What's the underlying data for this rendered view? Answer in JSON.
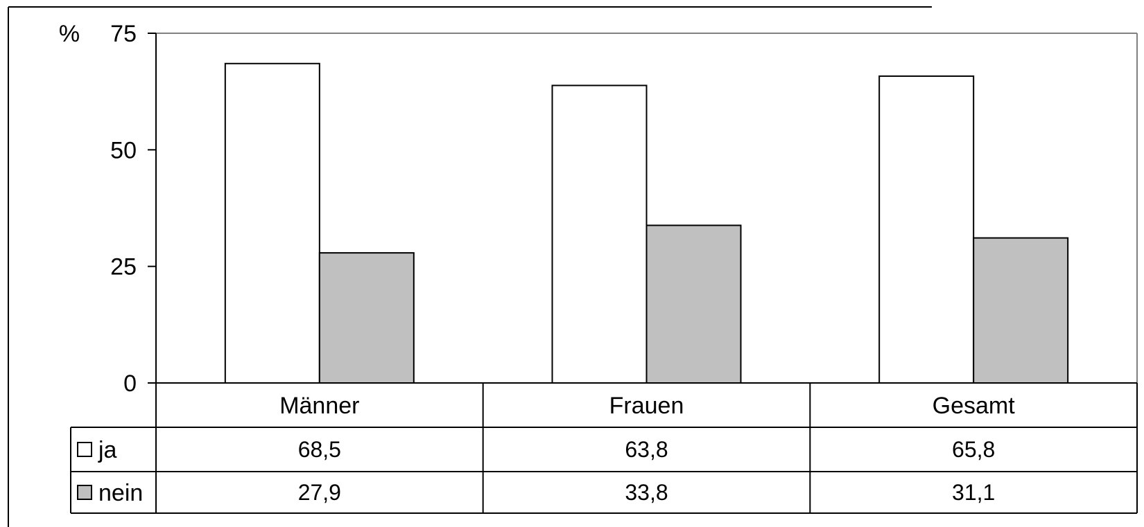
{
  "chart_data": {
    "type": "bar",
    "y_unit_label": "%",
    "ylim": [
      0,
      75
    ],
    "yticks": [
      0,
      25,
      50,
      75
    ],
    "categories": [
      "Männer",
      "Frauen",
      "Gesamt"
    ],
    "series": [
      {
        "name": "ja",
        "values": [
          68.5,
          63.8,
          65.8
        ],
        "value_labels": [
          "68,5",
          "63,8",
          "65,8"
        ],
        "color": "#ffffff"
      },
      {
        "name": "nein",
        "values": [
          27.9,
          33.8,
          31.1
        ],
        "value_labels": [
          "27,9",
          "33,8",
          "31,1"
        ],
        "color": "#c0c0c0"
      }
    ],
    "grid": false,
    "legend": "data-table"
  }
}
